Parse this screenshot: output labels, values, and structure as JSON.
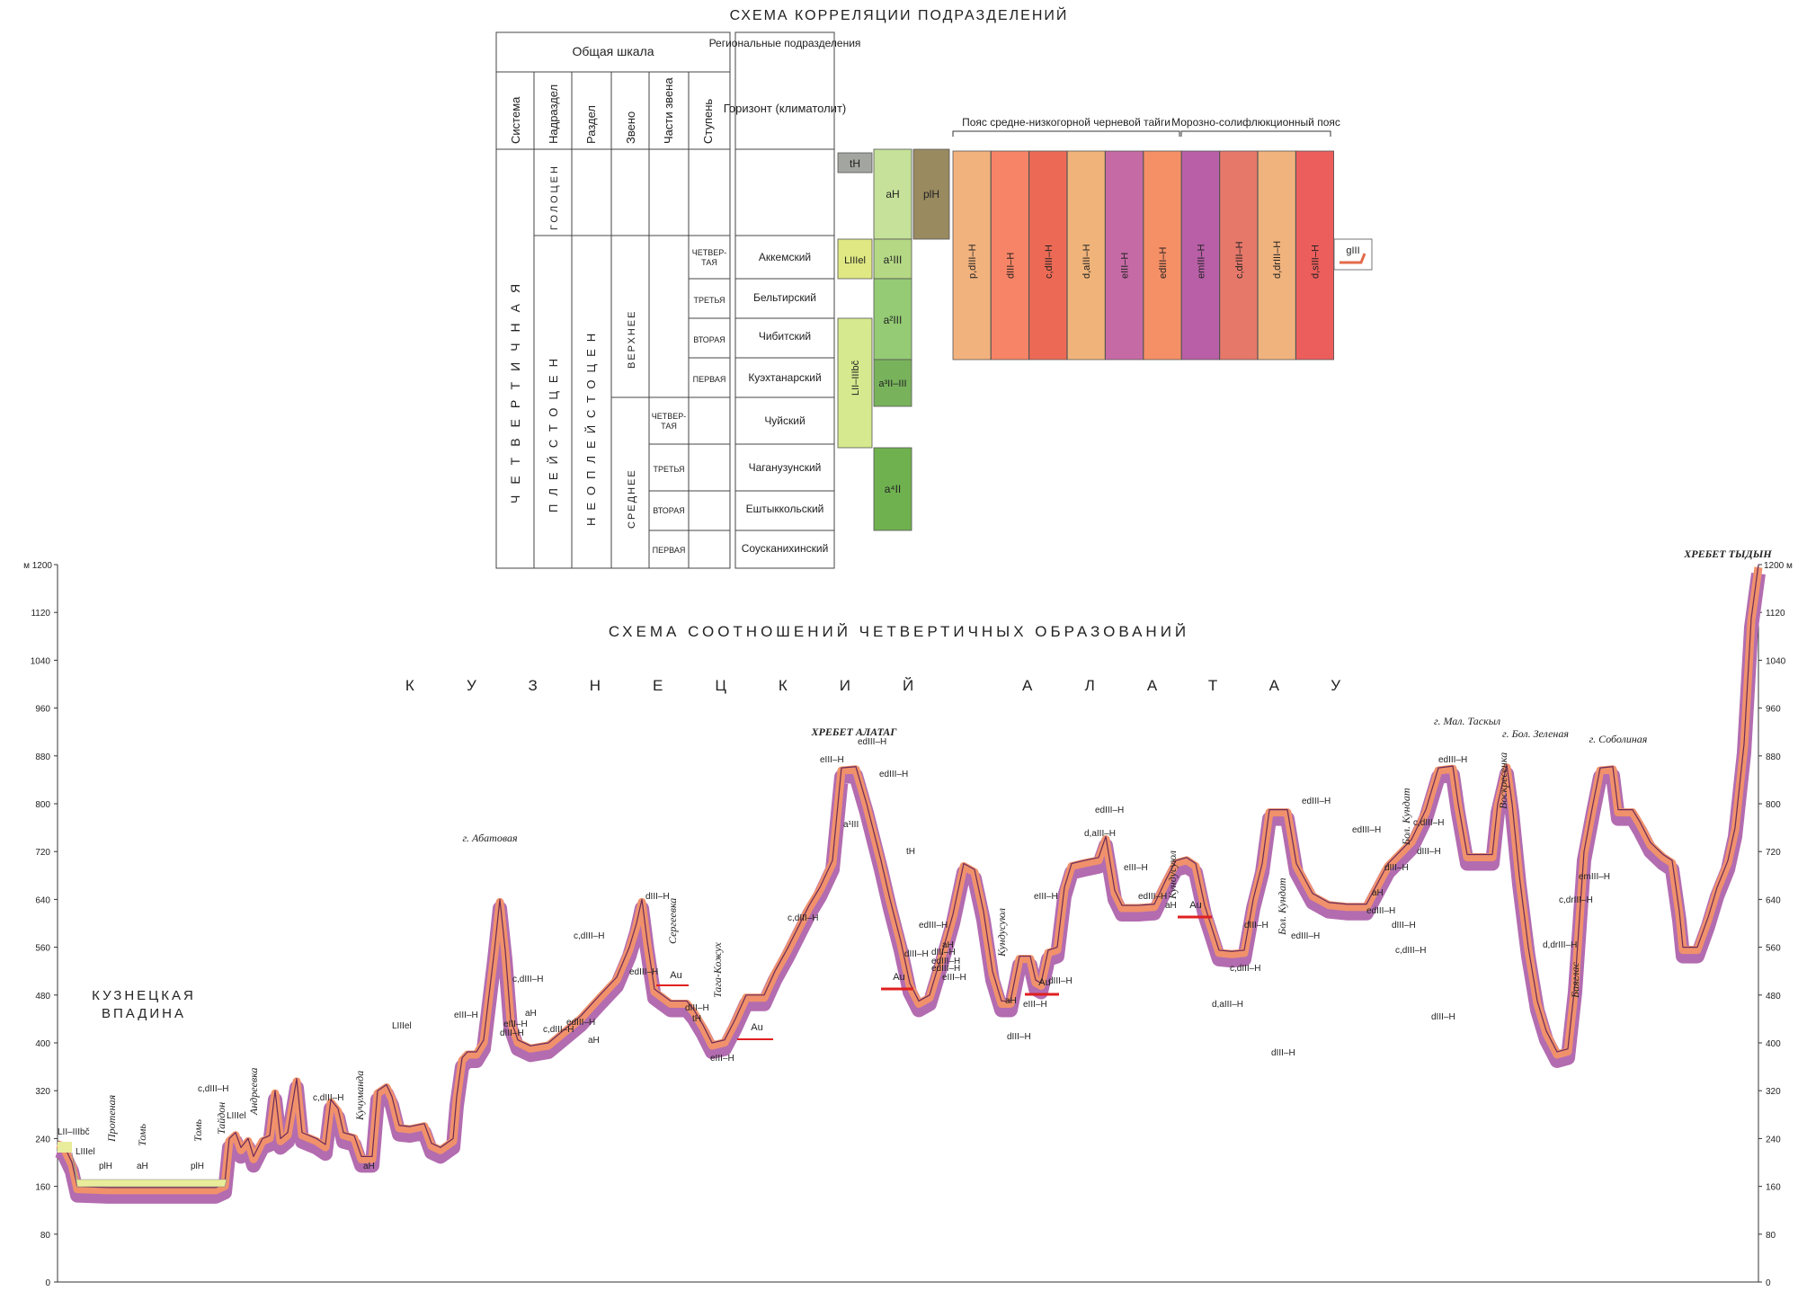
{
  "correlation": {
    "title": "СХЕМА КОРРЕЛЯЦИИ ПОДРАЗДЕЛЕНИЙ",
    "general_scale": "Общая шкала",
    "regional": "Региональные подразделения",
    "col_system": "Система",
    "col_supersection": "Надраздел",
    "col_section": "Раздел",
    "col_link": "Звено",
    "col_link_parts": "Части звена",
    "col_stage": "Ступень",
    "col_horizon": "Горизонт (климатолит)",
    "system_value": "ЧЕТВЕРТИЧНАЯ",
    "holocene": "ГОЛОЦЕН",
    "pleistocene": "ПЛЕЙСТОЦЕН",
    "neopleistocene": "НЕОПЛЕЙСТОЦЕН",
    "upper": "ВЕРХНЕЕ",
    "middle": "СРЕДНЕЕ",
    "part_labels": [
      "ЧЕТВЕР-ТАЯ",
      "ТРЕТЬЯ",
      "ВТОРАЯ",
      "ПЕРВАЯ",
      "ЧЕТВЕР-ТАЯ",
      "ТРЕТЬЯ",
      "ВТОРАЯ",
      "ПЕРВАЯ"
    ],
    "horizons": [
      "Аккемский",
      "Бельтирский",
      "Чибитский",
      "Куэхтанарский",
      "Чуйский",
      "Чаганузунский",
      "Ештыккольский",
      "Соусканихинский"
    ],
    "belt1": "Пояс средне-низкогорной черневой тайги",
    "belt2": "Морозно-солифлюкционный пояс",
    "blocks": {
      "tH": "tH",
      "aH": "aH",
      "plH": "plH",
      "LIIIel": "LIIIel",
      "a1III": "a¹III",
      "a2III": "a²III",
      "a3": "a³II–III",
      "LII": "LII–IIIbč",
      "a4II": "a⁴II",
      "gIII": "gIII"
    },
    "belt_blocks": [
      {
        "label": "p,dIII–H",
        "color": "#f2b27e"
      },
      {
        "label": "dIII–H",
        "color": "#f78466"
      },
      {
        "label": "c,dIII–H",
        "color": "#ec6a55"
      },
      {
        "label": "d,aIII–H",
        "color": "#f0b47a"
      },
      {
        "label": "eIII–H",
        "color": "#c66aa5"
      },
      {
        "label": "edIII–H",
        "color": "#f58f66"
      },
      {
        "label": "emIII–H",
        "color": "#b85fa7"
      },
      {
        "label": "c,drIII–H",
        "color": "#e6786a"
      },
      {
        "label": "d,drIII–H",
        "color": "#f1b37d"
      },
      {
        "label": "d,sIII–H",
        "color": "#ec5e5c"
      }
    ]
  },
  "profile": {
    "title": "СХЕМА СООТНОШЕНИЙ ЧЕТВЕРТИЧНЫХ ОБРАЗОВАНИЙ",
    "range": "КУЗНЕЦКИЙ АЛАТАУ",
    "basin": "КУЗНЕЦКАЯ ВПАДИНА",
    "left_unit": "м 1200",
    "right_unit": "1200 м",
    "y_ticks": [
      "1200",
      "1120",
      "1040",
      "960",
      "880",
      "800",
      "720",
      "640",
      "560",
      "480",
      "400",
      "320",
      "240",
      "160",
      "80",
      "0"
    ],
    "ylim": [
      0,
      1200
    ],
    "peaks": [
      "ХРЕБЕТ АЛАТАГ",
      "ХРЕБЕТ ТЫДЫН",
      "г. Абатовая",
      "г. Мал. Таскыл",
      "г. Бол. Зеленая",
      "г. Соболиная"
    ],
    "rivers": [
      "Протеная",
      "Томь",
      "Томь",
      "Тайдон",
      "Андреевка",
      "Кучуманда",
      "Сергеевка",
      "Тага-Кожух",
      "Кундусуюл",
      "Кундусуюл",
      "Бол. Кундат",
      "Бол. Кундат",
      "Воскресенка",
      "Баяглас"
    ],
    "au": "Au",
    "labels": [
      "LII–IIIbč",
      "LIIIel",
      "plH",
      "aH",
      "plH",
      "c,dIII–H",
      "LIIIel",
      "c,dIII–H",
      "aH",
      "LIIIel",
      "eIII–H",
      "c,dIII–H",
      "eIII–H",
      "aH",
      "dIII–H",
      "edIII–H",
      "c,dIII–H",
      "edIII–H",
      "c,dIII–H",
      "dIII–H",
      "aH",
      "dIII–H",
      "tH",
      "eIII–H",
      "c,dIII–H",
      "edIII–H",
      "eIII–H",
      "edIII–H",
      "a¹III",
      "tH",
      "dIII–H",
      "edIII–H",
      "dIII–H",
      "aH",
      "edIII–H",
      "eIII–H",
      "edIII–H",
      "eIII–H",
      "dIII–H",
      "aH",
      "eIII–H",
      "dIII–H",
      "edIII–H",
      "d,aIII–H",
      "eIII–H",
      "edIII–H",
      "aH",
      "c,dIII–H",
      "d,aIII–H",
      "dIII–H",
      "dIII–H",
      "edIII–H",
      "edIII–H",
      "edIII–H",
      "dIII–H",
      "edIII–H",
      "c,dIII–H",
      "dIII–H",
      "aH",
      "edIII–H",
      "dIII–H",
      "c,dIII–H",
      "dIII–H",
      "d,drIII–H",
      "c,drIII–H",
      "emIII–H"
    ]
  }
}
